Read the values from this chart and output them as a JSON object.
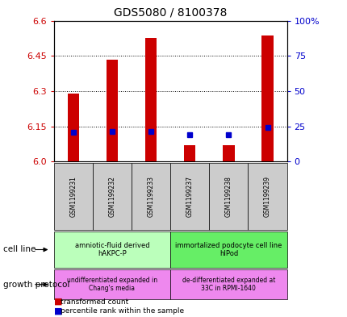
{
  "title": "GDS5080 / 8100378",
  "samples": [
    "GSM1199231",
    "GSM1199232",
    "GSM1199233",
    "GSM1199237",
    "GSM1199238",
    "GSM1199239"
  ],
  "red_values": [
    6.29,
    6.435,
    6.525,
    6.07,
    6.07,
    6.535
  ],
  "blue_values": [
    6.125,
    6.128,
    6.128,
    6.113,
    6.113,
    6.147
  ],
  "red_base": 6.0,
  "ylim": [
    6.0,
    6.6
  ],
  "ylim_right": [
    0,
    100
  ],
  "yticks_left": [
    6.0,
    6.15,
    6.3,
    6.45,
    6.6
  ],
  "yticks_right": [
    0,
    25,
    50,
    75,
    100
  ],
  "cell_line_labels": [
    "amniotic-fluid derived\nhAKPC-P",
    "immortalized podocyte cell line\nhIPod"
  ],
  "growth_protocol_labels": [
    "undifferentiated expanded in\nChang's media",
    "de-differentiated expanded at\n33C in RPMI-1640"
  ],
  "cell_line_spans": [
    [
      0,
      3
    ],
    [
      3,
      6
    ]
  ],
  "cell_line_colors": [
    "#bbffbb",
    "#66ee66"
  ],
  "growth_protocol_colors": [
    "#ee88ee",
    "#ee88ee"
  ],
  "bar_color": "#cc0000",
  "blue_color": "#0000cc",
  "title_fontsize": 10,
  "tick_fontsize": 8,
  "group_bg_color": "#cccccc",
  "bar_width": 0.3,
  "blue_marker_size": 4
}
